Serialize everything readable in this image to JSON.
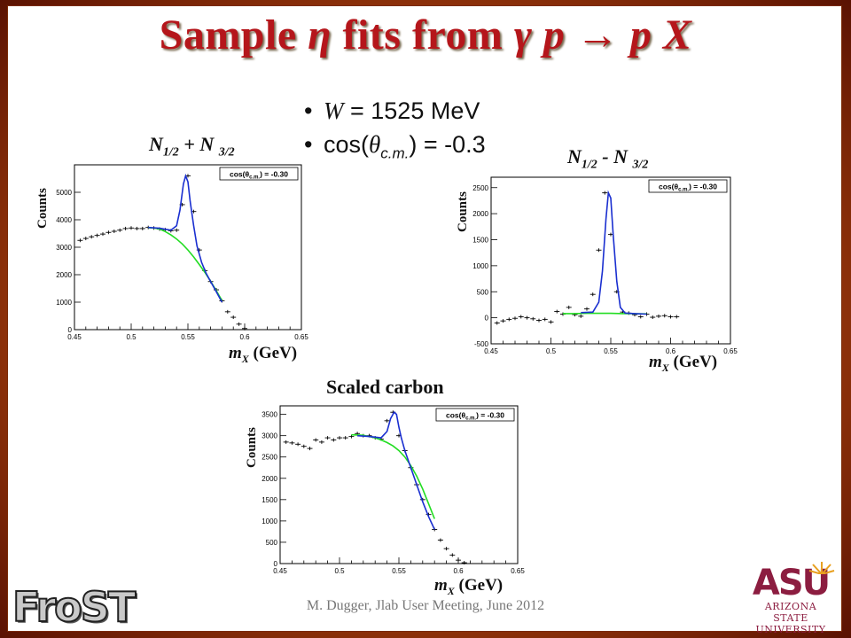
{
  "slide": {
    "title_a": "Sample ",
    "title_eta": "η",
    "title_b": " fits from ",
    "title_reaction": "γ p → p X",
    "bullet_w_var": "W",
    "bullet_w_val": " = 1525 MeV",
    "bullet_cos_a": "cos(",
    "bullet_cos_theta": "θ",
    "bullet_cos_sub": "c.m.",
    "bullet_cos_b": ") = -0.3",
    "footer": "M. Dugger, Jlab User Meeting, June 2012",
    "logo_left": "FroST",
    "logo_right_mark": "ASU",
    "logo_right_line1": "ARIZONA STATE",
    "logo_right_line2": "UNIVERSITY"
  },
  "panels": {
    "p1": {
      "label_n": "N",
      "label_s1": "1/2",
      "label_op": " + N ",
      "label_s2": "3/2",
      "y_axis": "Counts",
      "x_m": "m",
      "x_sub": "X",
      "x_unit": " (GeV)",
      "legend": "cos(θ",
      "legend_sub": "c.m.",
      "legend_val": ") = -0.30"
    },
    "p2": {
      "label_n": "N",
      "label_s1": "1/2",
      "label_op": " - N ",
      "label_s2": "3/2",
      "y_axis": "Counts",
      "x_m": "m",
      "x_sub": "X",
      "x_unit": " (GeV)",
      "legend": "cos(θ",
      "legend_sub": "c.m.",
      "legend_val": ") = -0.30"
    },
    "p3": {
      "label": "Scaled carbon",
      "y_axis": "Counts",
      "x_m": "m",
      "x_sub": "X",
      "x_unit": " (GeV)",
      "legend": "cos(θ",
      "legend_sub": "c.m.",
      "legend_val": ") = -0.30"
    }
  },
  "colors": {
    "title": "#b5161b",
    "fit_total": "#1a2fd0",
    "fit_background": "#22dd22",
    "data": "#000000"
  },
  "chart_data": [
    {
      "type": "scatter",
      "title": "N1/2 + N 3/2",
      "xlabel": "mX (GeV)",
      "ylabel": "Counts",
      "xlim": [
        0.45,
        0.65
      ],
      "ylim": [
        0,
        6000
      ],
      "xticks": [
        0.45,
        0.5,
        0.55,
        0.6,
        0.65
      ],
      "yticks": [
        0,
        1000,
        2000,
        3000,
        4000,
        5000
      ],
      "legend": "cos(θc.m.) = -0.30",
      "x": [
        0.455,
        0.46,
        0.465,
        0.47,
        0.475,
        0.48,
        0.485,
        0.49,
        0.495,
        0.5,
        0.505,
        0.51,
        0.515,
        0.52,
        0.525,
        0.53,
        0.535,
        0.54,
        0.545,
        0.55,
        0.555,
        0.56,
        0.565,
        0.57,
        0.575,
        0.58,
        0.585,
        0.59,
        0.595,
        0.6
      ],
      "y": [
        3250,
        3320,
        3380,
        3430,
        3480,
        3540,
        3580,
        3620,
        3680,
        3700,
        3680,
        3680,
        3720,
        3700,
        3660,
        3640,
        3600,
        3620,
        4550,
        5600,
        4300,
        2900,
        2150,
        1750,
        1450,
        1050,
        650,
        450,
        200,
        40
      ],
      "fit_total_x": [
        0.515,
        0.525,
        0.535,
        0.54,
        0.543,
        0.546,
        0.548,
        0.55,
        0.552,
        0.555,
        0.558,
        0.562,
        0.566,
        0.57,
        0.575,
        0.58
      ],
      "fit_total_y": [
        3720,
        3690,
        3620,
        3780,
        4350,
        5300,
        5600,
        5380,
        4650,
        3800,
        3050,
        2450,
        2050,
        1750,
        1380,
        1000
      ],
      "fit_background_x": [
        0.515,
        0.52,
        0.525,
        0.53,
        0.535,
        0.54,
        0.545,
        0.55,
        0.555,
        0.56,
        0.565,
        0.57,
        0.575,
        0.58
      ],
      "fit_background_y": [
        3710,
        3700,
        3660,
        3570,
        3450,
        3300,
        3120,
        2900,
        2650,
        2370,
        2080,
        1760,
        1420,
        1060
      ]
    },
    {
      "type": "scatter",
      "title": "N1/2 - N 3/2",
      "xlabel": "mX (GeV)",
      "ylabel": "Counts",
      "xlim": [
        0.45,
        0.65
      ],
      "ylim": [
        -500,
        2700
      ],
      "xticks": [
        0.45,
        0.5,
        0.55,
        0.6,
        0.65
      ],
      "yticks": [
        -500,
        0,
        500,
        1000,
        1500,
        2000,
        2500
      ],
      "legend": "cos(θc.m.) = -0.30",
      "x": [
        0.455,
        0.46,
        0.465,
        0.47,
        0.475,
        0.48,
        0.485,
        0.49,
        0.495,
        0.5,
        0.505,
        0.51,
        0.515,
        0.52,
        0.525,
        0.53,
        0.535,
        0.54,
        0.545,
        0.55,
        0.555,
        0.56,
        0.565,
        0.57,
        0.575,
        0.58,
        0.585,
        0.59,
        0.595,
        0.6,
        0.605
      ],
      "y": [
        -100,
        -60,
        -30,
        -10,
        20,
        0,
        -20,
        -50,
        -30,
        -80,
        120,
        70,
        200,
        60,
        30,
        170,
        450,
        1300,
        2400,
        1600,
        500,
        110,
        90,
        60,
        20,
        70,
        10,
        30,
        40,
        20,
        20
      ],
      "fit_total_x": [
        0.525,
        0.535,
        0.54,
        0.543,
        0.546,
        0.548,
        0.55,
        0.552,
        0.555,
        0.558,
        0.562,
        0.57,
        0.58
      ],
      "fit_total_y": [
        100,
        110,
        300,
        900,
        1900,
        2400,
        2300,
        1600,
        700,
        200,
        90,
        80,
        70
      ],
      "fit_background_x": [
        0.51,
        0.52,
        0.53,
        0.54,
        0.55,
        0.56,
        0.57,
        0.58
      ],
      "fit_background_y": [
        80,
        80,
        85,
        85,
        85,
        80,
        78,
        75
      ]
    },
    {
      "type": "scatter",
      "title": "Scaled carbon",
      "xlabel": "mX (GeV)",
      "ylabel": "Counts",
      "xlim": [
        0.45,
        0.65
      ],
      "ylim": [
        0,
        3700
      ],
      "xticks": [
        0.45,
        0.5,
        0.55,
        0.6,
        0.65
      ],
      "yticks": [
        0,
        500,
        1000,
        1500,
        2000,
        2500,
        3000,
        3500
      ],
      "legend": "cos(θc.m.) = -0.30",
      "x": [
        0.455,
        0.46,
        0.465,
        0.47,
        0.475,
        0.48,
        0.485,
        0.49,
        0.495,
        0.5,
        0.505,
        0.51,
        0.515,
        0.52,
        0.525,
        0.53,
        0.535,
        0.54,
        0.545,
        0.55,
        0.555,
        0.56,
        0.565,
        0.57,
        0.575,
        0.58,
        0.585,
        0.59,
        0.595,
        0.6,
        0.605
      ],
      "y": [
        2850,
        2830,
        2800,
        2750,
        2700,
        2900,
        2850,
        2950,
        2900,
        2950,
        2950,
        2980,
        3050,
        3000,
        3000,
        2950,
        2920,
        3350,
        3550,
        3000,
        2650,
        2250,
        1850,
        1500,
        1150,
        800,
        550,
        350,
        200,
        80,
        20
      ],
      "fit_total_x": [
        0.515,
        0.525,
        0.535,
        0.54,
        0.543,
        0.546,
        0.548,
        0.55,
        0.552,
        0.555,
        0.56,
        0.565,
        0.57,
        0.575,
        0.58
      ],
      "fit_total_y": [
        3000,
        2980,
        2950,
        3100,
        3400,
        3550,
        3500,
        3200,
        2950,
        2650,
        2250,
        1850,
        1450,
        1100,
        800
      ],
      "fit_background_x": [
        0.51,
        0.52,
        0.53,
        0.535,
        0.54,
        0.545,
        0.55,
        0.555,
        0.56,
        0.565,
        0.57,
        0.575,
        0.58
      ],
      "fit_background_y": [
        3020,
        3010,
        2950,
        2900,
        2840,
        2760,
        2650,
        2500,
        2300,
        2050,
        1750,
        1400,
        1050
      ]
    }
  ]
}
